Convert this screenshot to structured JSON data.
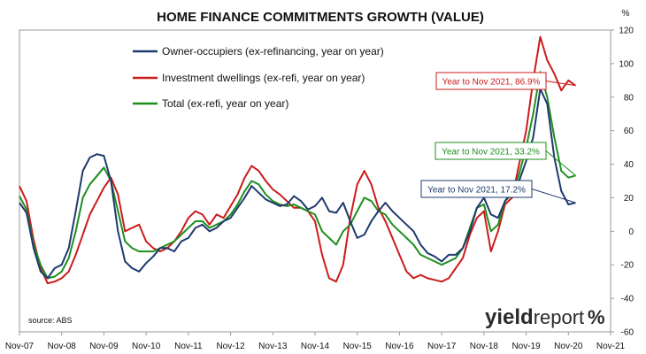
{
  "chart_data": {
    "type": "line",
    "title": "HOME FINANCE COMMITMENTS GROWTH (VALUE)",
    "y_unit": "%",
    "ylim": [
      -60,
      120
    ],
    "yticks": [
      120,
      100,
      80,
      60,
      40,
      20,
      0,
      -20,
      -40,
      -60
    ],
    "x_tick_labels": [
      "Nov-07",
      "Nov-08",
      "Nov-09",
      "Nov-10",
      "Nov-11",
      "Nov-12",
      "Nov-13",
      "Nov-14",
      "Nov-15",
      "Nov-16",
      "Nov-17",
      "Nov-18",
      "Nov-19",
      "Nov-20",
      "Nov-21"
    ],
    "x_start": "Nov-07",
    "x_end": "Nov-21",
    "grid": false,
    "legend_position": "top-left",
    "source": "source: ABS",
    "series": [
      {
        "name": "Owner-occupiers (ex-refinancing, year on year)",
        "color": "#1f3a6e",
        "points": [
          [
            0,
            17
          ],
          [
            2,
            11
          ],
          [
            4,
            -10
          ],
          [
            6,
            -24
          ],
          [
            8,
            -28
          ],
          [
            10,
            -22
          ],
          [
            12,
            -20
          ],
          [
            14,
            -10
          ],
          [
            16,
            12
          ],
          [
            18,
            36
          ],
          [
            20,
            44
          ],
          [
            22,
            46
          ],
          [
            24,
            45
          ],
          [
            26,
            30
          ],
          [
            28,
            0
          ],
          [
            30,
            -18
          ],
          [
            32,
            -22
          ],
          [
            34,
            -24
          ],
          [
            36,
            -19
          ],
          [
            38,
            -15
          ],
          [
            40,
            -10
          ],
          [
            42,
            -10
          ],
          [
            44,
            -12
          ],
          [
            46,
            -6
          ],
          [
            48,
            -4
          ],
          [
            50,
            2
          ],
          [
            52,
            4
          ],
          [
            54,
            0
          ],
          [
            56,
            2
          ],
          [
            58,
            6
          ],
          [
            60,
            8
          ],
          [
            62,
            14
          ],
          [
            64,
            20
          ],
          [
            66,
            27
          ],
          [
            68,
            23
          ],
          [
            70,
            19
          ],
          [
            72,
            17
          ],
          [
            74,
            15
          ],
          [
            76,
            16
          ],
          [
            78,
            21
          ],
          [
            80,
            18
          ],
          [
            82,
            13
          ],
          [
            84,
            15
          ],
          [
            86,
            20
          ],
          [
            88,
            12
          ],
          [
            90,
            11
          ],
          [
            92,
            17
          ],
          [
            94,
            6
          ],
          [
            96,
            -4
          ],
          [
            98,
            -2
          ],
          [
            100,
            6
          ],
          [
            102,
            12
          ],
          [
            104,
            17
          ],
          [
            106,
            12
          ],
          [
            108,
            8
          ],
          [
            110,
            4
          ],
          [
            112,
            0
          ],
          [
            114,
            -8
          ],
          [
            116,
            -13
          ],
          [
            118,
            -15
          ],
          [
            120,
            -18
          ],
          [
            122,
            -14
          ],
          [
            124,
            -14
          ],
          [
            126,
            -10
          ],
          [
            128,
            0
          ],
          [
            130,
            14
          ],
          [
            132,
            20
          ],
          [
            134,
            10
          ],
          [
            136,
            8
          ],
          [
            138,
            18
          ],
          [
            140,
            24
          ],
          [
            142,
            30
          ],
          [
            144,
            42
          ],
          [
            146,
            56
          ],
          [
            148,
            85
          ],
          [
            150,
            76
          ],
          [
            152,
            44
          ],
          [
            154,
            24
          ],
          [
            156,
            16
          ],
          [
            158,
            17
          ]
        ]
      },
      {
        "name": "Investment dwellings (ex-refi, year on year)",
        "color": "#cc1b1b",
        "points": [
          [
            0,
            27
          ],
          [
            2,
            18
          ],
          [
            4,
            -5
          ],
          [
            6,
            -22
          ],
          [
            8,
            -31
          ],
          [
            10,
            -30
          ],
          [
            12,
            -28
          ],
          [
            14,
            -24
          ],
          [
            16,
            -14
          ],
          [
            18,
            -2
          ],
          [
            20,
            10
          ],
          [
            22,
            18
          ],
          [
            24,
            26
          ],
          [
            26,
            32
          ],
          [
            28,
            22
          ],
          [
            30,
            0
          ],
          [
            32,
            2
          ],
          [
            34,
            4
          ],
          [
            36,
            -6
          ],
          [
            38,
            -10
          ],
          [
            40,
            -12
          ],
          [
            42,
            -10
          ],
          [
            44,
            -6
          ],
          [
            46,
            0
          ],
          [
            48,
            8
          ],
          [
            50,
            12
          ],
          [
            52,
            10
          ],
          [
            54,
            4
          ],
          [
            56,
            10
          ],
          [
            58,
            8
          ],
          [
            60,
            15
          ],
          [
            62,
            22
          ],
          [
            64,
            32
          ],
          [
            66,
            39
          ],
          [
            68,
            36
          ],
          [
            70,
            30
          ],
          [
            72,
            25
          ],
          [
            74,
            22
          ],
          [
            76,
            18
          ],
          [
            78,
            14
          ],
          [
            80,
            14
          ],
          [
            82,
            12
          ],
          [
            84,
            6
          ],
          [
            86,
            -14
          ],
          [
            88,
            -28
          ],
          [
            90,
            -30
          ],
          [
            92,
            -20
          ],
          [
            94,
            8
          ],
          [
            96,
            28
          ],
          [
            98,
            36
          ],
          [
            100,
            28
          ],
          [
            102,
            14
          ],
          [
            104,
            6
          ],
          [
            106,
            -4
          ],
          [
            108,
            -14
          ],
          [
            110,
            -24
          ],
          [
            112,
            -28
          ],
          [
            114,
            -26
          ],
          [
            116,
            -28
          ],
          [
            118,
            -29
          ],
          [
            120,
            -30
          ],
          [
            122,
            -28
          ],
          [
            124,
            -22
          ],
          [
            126,
            -16
          ],
          [
            128,
            -2
          ],
          [
            130,
            8
          ],
          [
            132,
            12
          ],
          [
            134,
            -12
          ],
          [
            136,
            0
          ],
          [
            138,
            16
          ],
          [
            140,
            20
          ],
          [
            142,
            40
          ],
          [
            144,
            60
          ],
          [
            146,
            90
          ],
          [
            148,
            116
          ],
          [
            150,
            102
          ],
          [
            152,
            94
          ],
          [
            154,
            84
          ],
          [
            156,
            90
          ],
          [
            158,
            86.9
          ]
        ]
      },
      {
        "name": "Total (ex-refi, year on year)",
        "color": "#1e8f1e",
        "points": [
          [
            0,
            21
          ],
          [
            2,
            13
          ],
          [
            4,
            -8
          ],
          [
            6,
            -20
          ],
          [
            8,
            -28
          ],
          [
            10,
            -27
          ],
          [
            12,
            -24
          ],
          [
            14,
            -16
          ],
          [
            16,
            0
          ],
          [
            18,
            20
          ],
          [
            20,
            28
          ],
          [
            22,
            33
          ],
          [
            24,
            38
          ],
          [
            26,
            30
          ],
          [
            28,
            12
          ],
          [
            30,
            -6
          ],
          [
            32,
            -10
          ],
          [
            34,
            -12
          ],
          [
            36,
            -12
          ],
          [
            38,
            -12
          ],
          [
            40,
            -10
          ],
          [
            42,
            -8
          ],
          [
            44,
            -6
          ],
          [
            46,
            -2
          ],
          [
            48,
            2
          ],
          [
            50,
            6
          ],
          [
            52,
            6
          ],
          [
            54,
            2
          ],
          [
            56,
            4
          ],
          [
            58,
            6
          ],
          [
            60,
            10
          ],
          [
            62,
            16
          ],
          [
            64,
            24
          ],
          [
            66,
            30
          ],
          [
            68,
            28
          ],
          [
            70,
            22
          ],
          [
            72,
            18
          ],
          [
            74,
            16
          ],
          [
            76,
            15
          ],
          [
            78,
            16
          ],
          [
            80,
            14
          ],
          [
            82,
            12
          ],
          [
            84,
            10
          ],
          [
            86,
            0
          ],
          [
            88,
            -4
          ],
          [
            90,
            -8
          ],
          [
            92,
            0
          ],
          [
            94,
            4
          ],
          [
            96,
            12
          ],
          [
            98,
            20
          ],
          [
            100,
            18
          ],
          [
            102,
            12
          ],
          [
            104,
            10
          ],
          [
            106,
            4
          ],
          [
            108,
            0
          ],
          [
            110,
            -4
          ],
          [
            112,
            -8
          ],
          [
            114,
            -14
          ],
          [
            116,
            -16
          ],
          [
            118,
            -18
          ],
          [
            120,
            -20
          ],
          [
            122,
            -18
          ],
          [
            124,
            -16
          ],
          [
            126,
            -10
          ],
          [
            128,
            2
          ],
          [
            130,
            14
          ],
          [
            132,
            16
          ],
          [
            134,
            0
          ],
          [
            136,
            4
          ],
          [
            138,
            18
          ],
          [
            140,
            22
          ],
          [
            142,
            34
          ],
          [
            144,
            50
          ],
          [
            146,
            70
          ],
          [
            148,
            95
          ],
          [
            150,
            80
          ],
          [
            152,
            56
          ],
          [
            154,
            36
          ],
          [
            156,
            32
          ],
          [
            158,
            33.2
          ]
        ]
      }
    ],
    "annotations": [
      {
        "text": "Year to Nov 2021, 86.9%",
        "series": 1,
        "color": "#cc1b1b"
      },
      {
        "text": "Year to Nov 2021, 33.2%",
        "series": 2,
        "color": "#1e8f1e"
      },
      {
        "text": "Year to Nov 2021, 17.2%",
        "series": 0,
        "color": "#1f3a6e"
      }
    ]
  },
  "brand": {
    "logo_main": "yield",
    "logo_sub": "report",
    "logo_mark": "%"
  }
}
